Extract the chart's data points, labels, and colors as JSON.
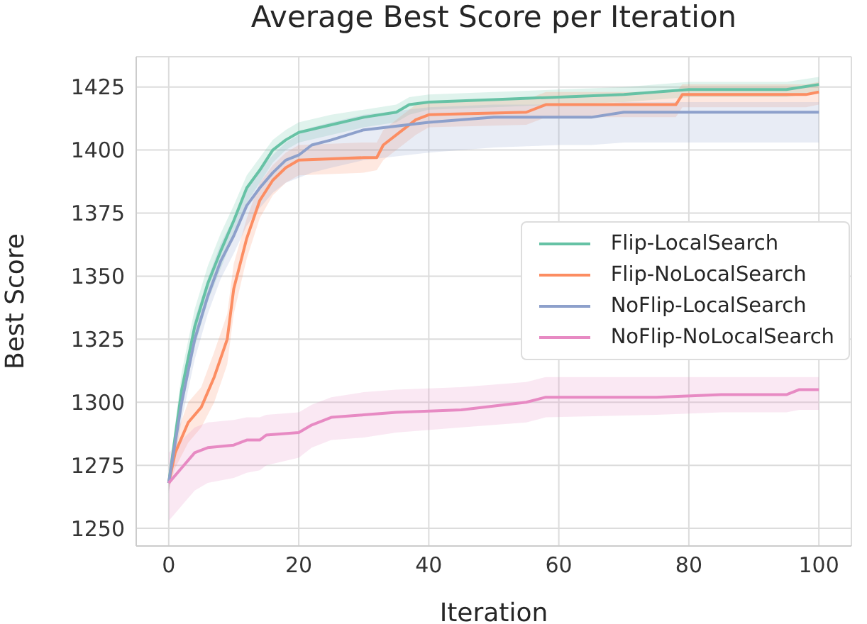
{
  "chart_data": {
    "type": "line",
    "title": "Average Best Score per Iteration",
    "xlabel": "Iteration",
    "ylabel": "Best Score",
    "xlim": [
      -5,
      105
    ],
    "ylim": [
      1243,
      1437
    ],
    "xticks": [
      0,
      20,
      40,
      60,
      80,
      100
    ],
    "yticks": [
      1250,
      1275,
      1300,
      1325,
      1350,
      1375,
      1400,
      1425
    ],
    "grid": true,
    "legend": "right",
    "marker": "none",
    "line_style": "solid",
    "series": [
      {
        "name": "Flip-LocalSearch",
        "color": "#66c2a5",
        "x": [
          0,
          2,
          4,
          6,
          8,
          10,
          12,
          14,
          16,
          18,
          20,
          25,
          30,
          35,
          37,
          40,
          50,
          60,
          70,
          80,
          90,
          95,
          100
        ],
        "values": [
          1268,
          1305,
          1330,
          1347,
          1360,
          1372,
          1385,
          1392,
          1400,
          1404,
          1407,
          1410,
          1413,
          1415,
          1418,
          1419,
          1420,
          1421,
          1422,
          1424,
          1424,
          1424,
          1426
        ],
        "lower": [
          1265,
          1298,
          1322,
          1340,
          1353,
          1366,
          1379,
          1387,
          1395,
          1400,
          1403,
          1406,
          1409,
          1411,
          1414,
          1416,
          1417,
          1418,
          1419,
          1421,
          1421,
          1421,
          1423
        ],
        "upper": [
          1271,
          1312,
          1337,
          1354,
          1367,
          1378,
          1390,
          1397,
          1404,
          1408,
          1411,
          1414,
          1416,
          1418,
          1421,
          1422,
          1423,
          1424,
          1425,
          1427,
          1427,
          1427,
          1429
        ]
      },
      {
        "name": "Flip-NoLocalSearch",
        "color": "#fc8d62",
        "x": [
          0,
          1,
          3,
          5,
          7,
          9,
          10,
          12,
          14,
          16,
          18,
          20,
          30,
          32,
          33,
          36,
          38,
          40,
          55,
          58,
          78,
          79,
          98,
          100
        ],
        "values": [
          1268,
          1280,
          1292,
          1298,
          1310,
          1325,
          1345,
          1365,
          1380,
          1388,
          1393,
          1396,
          1397,
          1397,
          1402,
          1408,
          1412,
          1414,
          1415,
          1418,
          1418,
          1422,
          1422,
          1423
        ],
        "lower": [
          1265,
          1274,
          1284,
          1290,
          1300,
          1315,
          1335,
          1357,
          1373,
          1382,
          1387,
          1390,
          1391,
          1392,
          1396,
          1402,
          1406,
          1409,
          1410,
          1413,
          1413,
          1417,
          1417,
          1418
        ],
        "upper": [
          1271,
          1286,
          1300,
          1306,
          1320,
          1335,
          1355,
          1373,
          1387,
          1394,
          1399,
          1402,
          1403,
          1403,
          1408,
          1414,
          1418,
          1419,
          1420,
          1423,
          1423,
          1426,
          1426,
          1427
        ]
      },
      {
        "name": "NoFlip-LocalSearch",
        "color": "#8da0cb",
        "x": [
          0,
          2,
          4,
          6,
          8,
          10,
          12,
          14,
          16,
          18,
          20,
          22,
          25,
          30,
          40,
          50,
          60,
          65,
          70,
          100
        ],
        "values": [
          1268,
          1300,
          1325,
          1342,
          1356,
          1366,
          1378,
          1385,
          1391,
          1396,
          1398,
          1402,
          1404,
          1408,
          1411,
          1413,
          1413,
          1413,
          1415,
          1415
        ],
        "lower": [
          1264,
          1293,
          1317,
          1335,
          1349,
          1359,
          1370,
          1377,
          1383,
          1387,
          1389,
          1391,
          1393,
          1396,
          1399,
          1401,
          1402,
          1402,
          1403,
          1403
        ],
        "upper": [
          1272,
          1307,
          1333,
          1349,
          1363,
          1373,
          1385,
          1392,
          1398,
          1403,
          1406,
          1409,
          1411,
          1414,
          1417,
          1418,
          1418,
          1418,
          1419,
          1419
        ]
      },
      {
        "name": "NoFlip-NoLocalSearch",
        "color": "#e78ac3",
        "x": [
          0,
          2,
          4,
          6,
          10,
          12,
          14,
          15,
          20,
          22,
          25,
          30,
          35,
          45,
          55,
          58,
          75,
          85,
          95,
          97,
          100
        ],
        "values": [
          1268,
          1274,
          1280,
          1282,
          1283,
          1285,
          1285,
          1287,
          1288,
          1291,
          1294,
          1295,
          1296,
          1297,
          1300,
          1302,
          1302,
          1303,
          1303,
          1305,
          1305
        ],
        "lower": [
          1253,
          1259,
          1265,
          1268,
          1270,
          1272,
          1273,
          1275,
          1278,
          1282,
          1285,
          1286,
          1288,
          1290,
          1292,
          1294,
          1295,
          1296,
          1296,
          1297,
          1297
        ],
        "upper": [
          1280,
          1285,
          1290,
          1292,
          1293,
          1294,
          1294,
          1295,
          1296,
          1299,
          1302,
          1304,
          1305,
          1306,
          1308,
          1310,
          1310,
          1310,
          1310,
          1310,
          1310
        ]
      }
    ]
  }
}
